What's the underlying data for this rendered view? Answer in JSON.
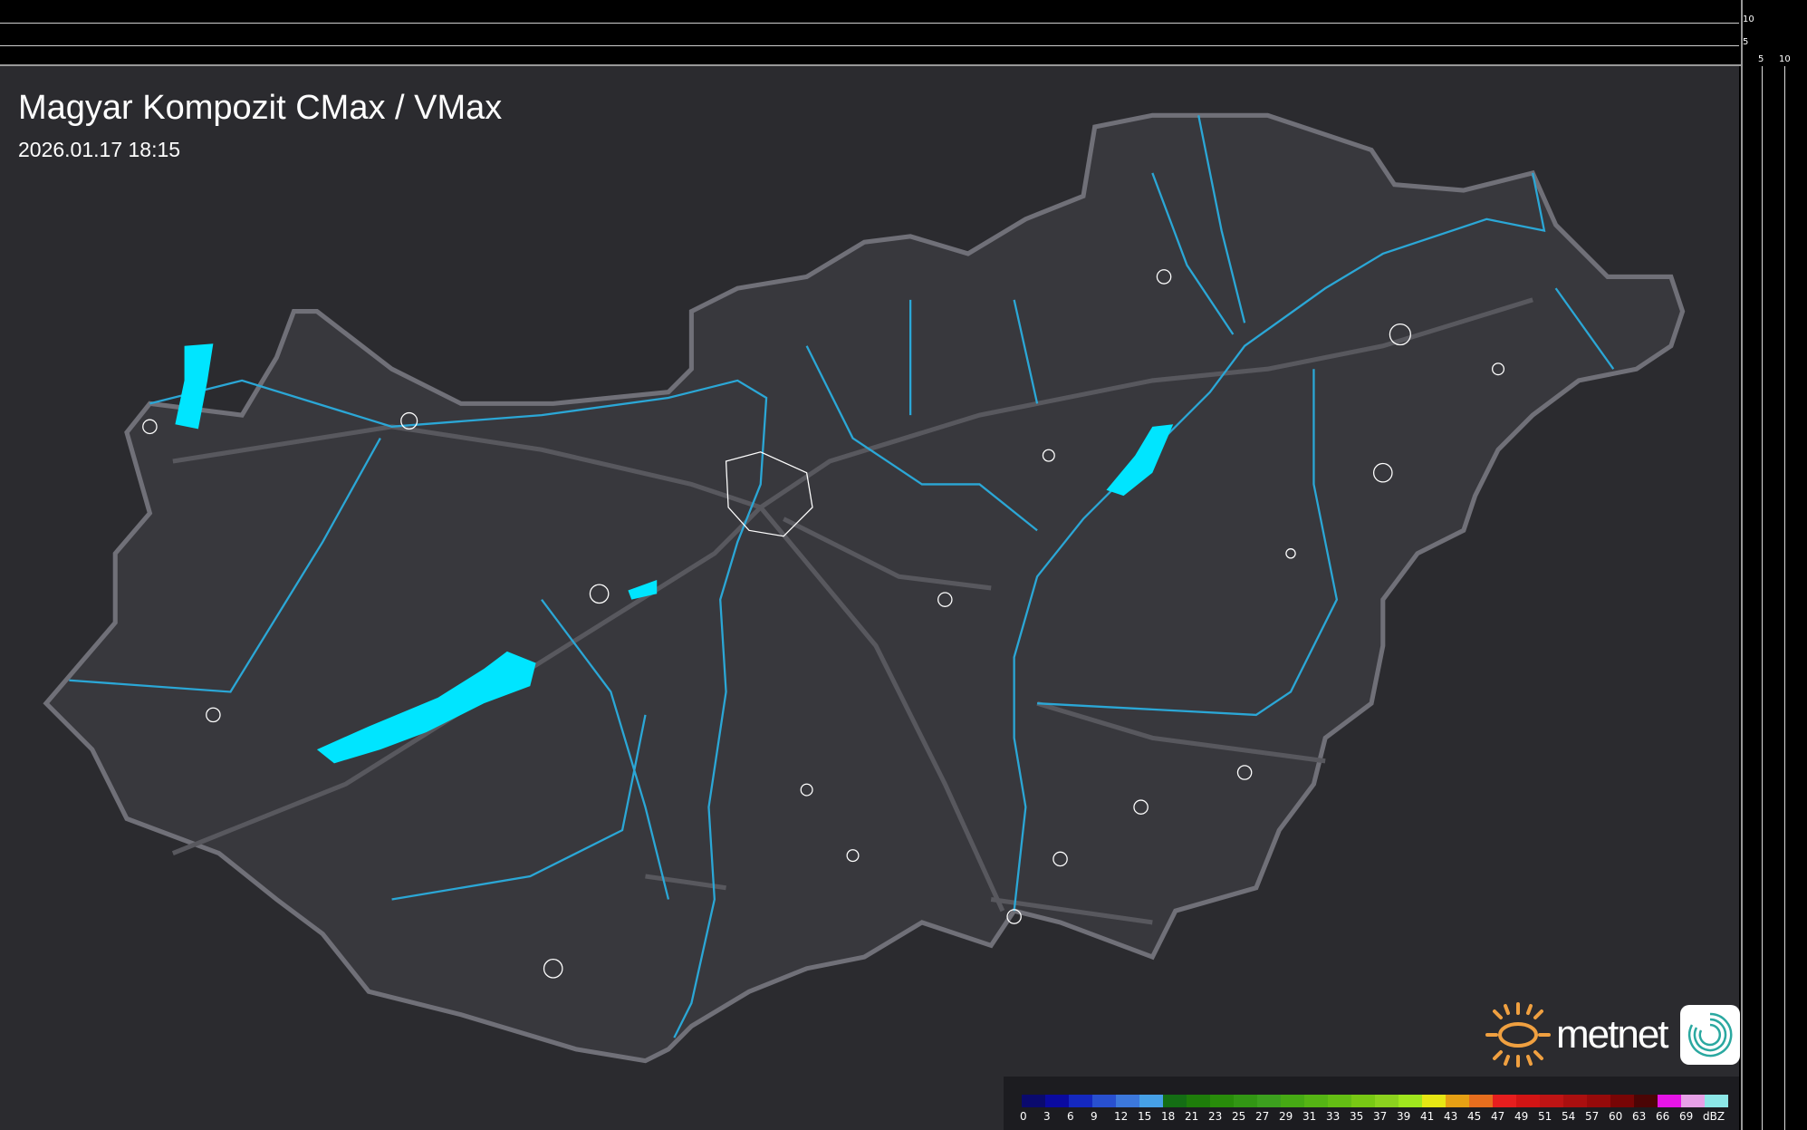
{
  "header": {
    "title": "Magyar Kompozit CMax / VMax",
    "timestamp": "2026.01.17 18:15"
  },
  "side_profile": {
    "top_scale_labels": [
      "10",
      "5"
    ],
    "right_scale_labels": [
      "5",
      "10"
    ]
  },
  "legend": {
    "unit": "dBZ",
    "labels": [
      "0",
      "3",
      "6",
      "9",
      "12",
      "15",
      "18",
      "21",
      "23",
      "25",
      "27",
      "29",
      "31",
      "33",
      "35",
      "37",
      "39",
      "41",
      "43",
      "45",
      "47",
      "49",
      "51",
      "54",
      "57",
      "60",
      "63",
      "66",
      "69"
    ],
    "colors": [
      "#0a0a6e",
      "#0a0aa0",
      "#1428c0",
      "#2850d0",
      "#3c78dc",
      "#46a0e6",
      "#146e14",
      "#1e7d0a",
      "#288c0a",
      "#329614",
      "#3ca01e",
      "#46aa14",
      "#55b414",
      "#64be14",
      "#78c814",
      "#8cd21e",
      "#a0e61e",
      "#e6e614",
      "#e6a014",
      "#e66e1e",
      "#e61e1e",
      "#d21414",
      "#be1414",
      "#aa0f0f",
      "#960a0a",
      "#780505",
      "#4b0505",
      "#e614e6",
      "#e6a0e6",
      "#8ce6e6"
    ]
  },
  "branding": {
    "logo_text": "metnet",
    "sun_color": "#f0a040",
    "app_icon_color": "#2aa8a0"
  },
  "map_colors": {
    "background": "#2b2b2f",
    "country_fill": "#38383d",
    "border": "#6f6f76",
    "rivers": "#2ba7d6",
    "lakes": "#00e5ff",
    "roads": "#55555b",
    "towns": "#ffffff"
  }
}
